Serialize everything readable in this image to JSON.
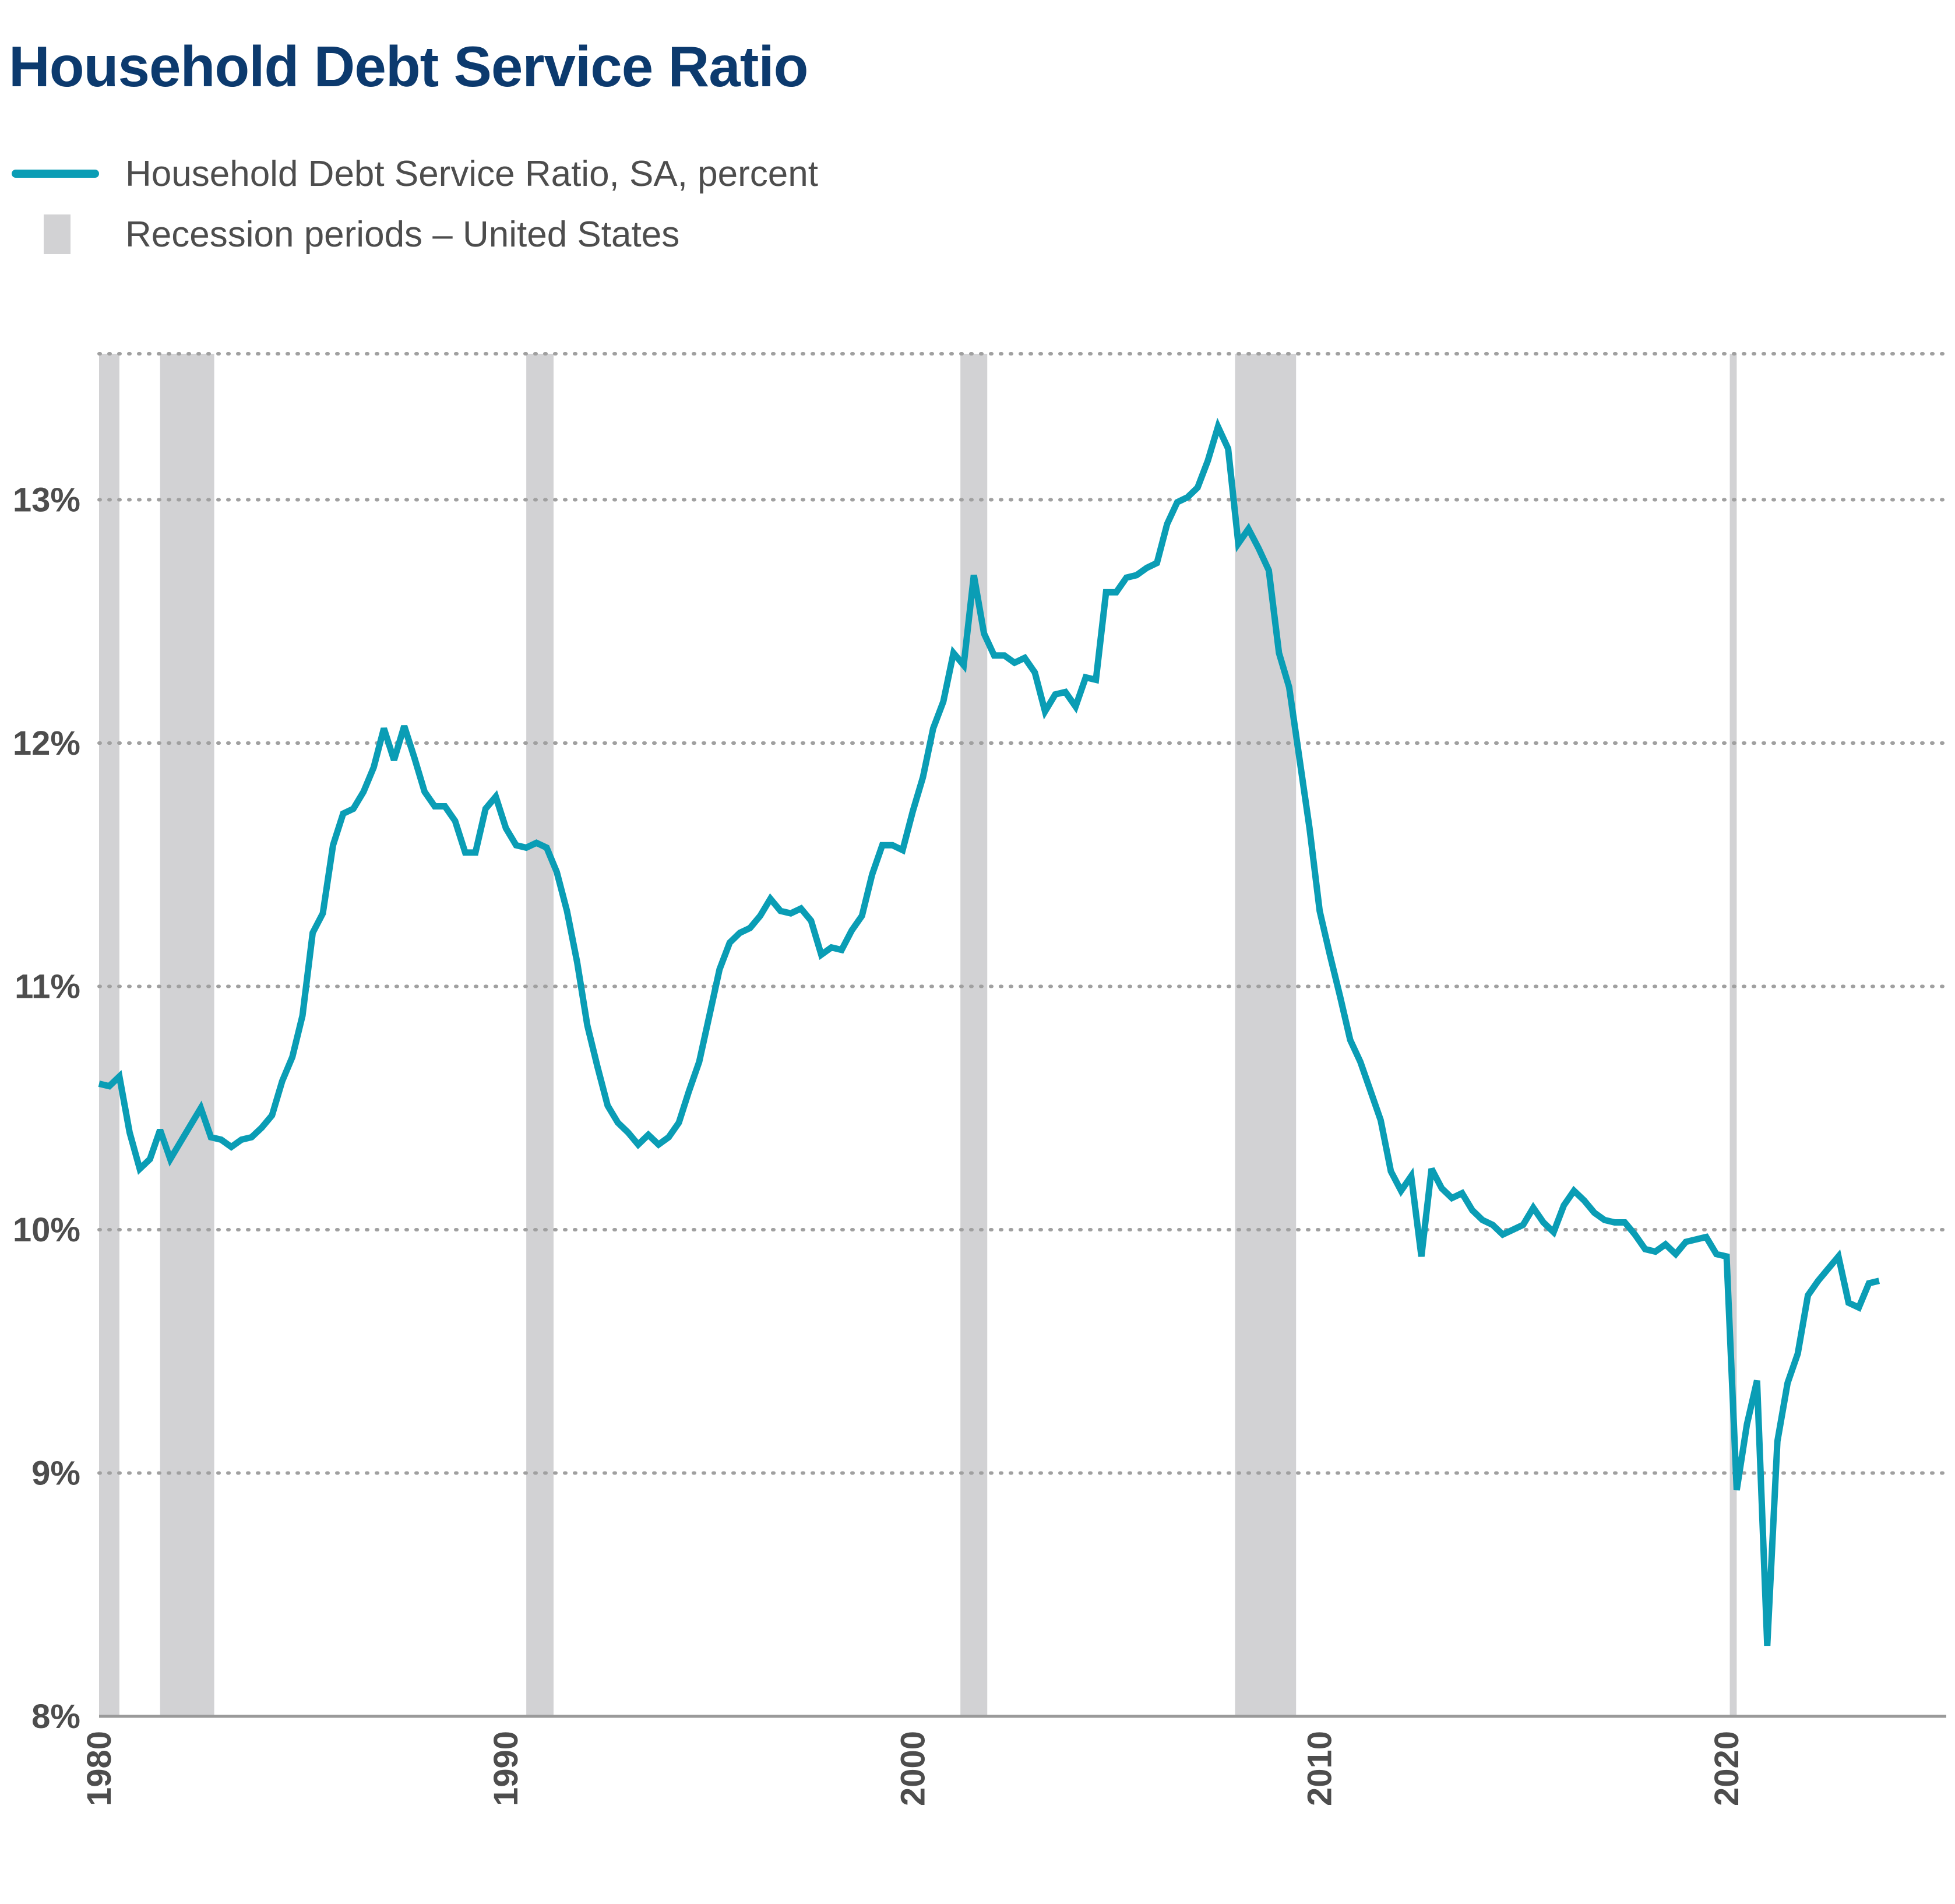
{
  "colors": {
    "title": "#0c3a6e",
    "series_line": "#0a9db5",
    "recession_band": "#d2d2d4",
    "gridline": "#a0a0a0",
    "axis": "#9a9a9a",
    "tick_text": "#4d4d4d"
  },
  "chart_data": {
    "type": "line",
    "title": "Household Debt Service Ratio",
    "xlabel": "",
    "ylabel": "",
    "y_unit": "%",
    "xlim": [
      1980,
      2025.4
    ],
    "ylim": [
      8,
      13.6
    ],
    "x_ticks": [
      1980,
      1990,
      2000,
      2010,
      2020
    ],
    "y_ticks": [
      8,
      9,
      10,
      11,
      12,
      13
    ],
    "grid": "horizontal dotted",
    "legend_position": "top-left",
    "legend": [
      {
        "label": "Household Debt Service Ratio, SA, percent",
        "kind": "line"
      },
      {
        "label": "Recession periods – United States",
        "kind": "band"
      }
    ],
    "recessions": [
      [
        1980.0,
        1980.5
      ],
      [
        1981.5,
        1982.83
      ],
      [
        1990.5,
        1991.17
      ],
      [
        2001.17,
        2001.83
      ],
      [
        2007.92,
        2009.42
      ],
      [
        2020.08,
        2020.25
      ]
    ],
    "series": [
      {
        "name": "Household Debt Service Ratio, SA, percent",
        "points": [
          [
            1980.0,
            10.6
          ],
          [
            1980.25,
            10.59
          ],
          [
            1980.5,
            10.63
          ],
          [
            1980.75,
            10.4
          ],
          [
            1981.0,
            10.25
          ],
          [
            1981.25,
            10.29
          ],
          [
            1981.5,
            10.41
          ],
          [
            1981.75,
            10.29
          ],
          [
            1982.0,
            10.36
          ],
          [
            1982.25,
            10.43
          ],
          [
            1982.5,
            10.5
          ],
          [
            1982.75,
            10.38
          ],
          [
            1983.0,
            10.37
          ],
          [
            1983.25,
            10.34
          ],
          [
            1983.5,
            10.37
          ],
          [
            1983.75,
            10.38
          ],
          [
            1984.0,
            10.42
          ],
          [
            1984.25,
            10.47
          ],
          [
            1984.5,
            10.61
          ],
          [
            1984.75,
            10.71
          ],
          [
            1985.0,
            10.88
          ],
          [
            1985.25,
            11.22
          ],
          [
            1985.5,
            11.3
          ],
          [
            1985.75,
            11.58
          ],
          [
            1986.0,
            11.71
          ],
          [
            1986.25,
            11.73
          ],
          [
            1986.5,
            11.8
          ],
          [
            1986.75,
            11.9
          ],
          [
            1987.0,
            12.06
          ],
          [
            1987.25,
            11.93
          ],
          [
            1987.5,
            12.07
          ],
          [
            1987.75,
            11.94
          ],
          [
            1988.0,
            11.8
          ],
          [
            1988.25,
            11.74
          ],
          [
            1988.5,
            11.74
          ],
          [
            1988.75,
            11.68
          ],
          [
            1989.0,
            11.55
          ],
          [
            1989.25,
            11.55
          ],
          [
            1989.5,
            11.73
          ],
          [
            1989.75,
            11.78
          ],
          [
            1990.0,
            11.65
          ],
          [
            1990.25,
            11.58
          ],
          [
            1990.5,
            11.57
          ],
          [
            1990.75,
            11.59
          ],
          [
            1991.0,
            11.57
          ],
          [
            1991.25,
            11.47
          ],
          [
            1991.5,
            11.31
          ],
          [
            1991.75,
            11.1
          ],
          [
            1992.0,
            10.84
          ],
          [
            1992.25,
            10.67
          ],
          [
            1992.5,
            10.51
          ],
          [
            1992.75,
            10.44
          ],
          [
            1993.0,
            10.4
          ],
          [
            1993.25,
            10.35
          ],
          [
            1993.5,
            10.39
          ],
          [
            1993.75,
            10.35
          ],
          [
            1994.0,
            10.38
          ],
          [
            1994.25,
            10.44
          ],
          [
            1994.5,
            10.57
          ],
          [
            1994.75,
            10.69
          ],
          [
            1995.0,
            10.88
          ],
          [
            1995.25,
            11.07
          ],
          [
            1995.5,
            11.18
          ],
          [
            1995.75,
            11.22
          ],
          [
            1996.0,
            11.24
          ],
          [
            1996.25,
            11.29
          ],
          [
            1996.5,
            11.36
          ],
          [
            1996.75,
            11.31
          ],
          [
            1997.0,
            11.3
          ],
          [
            1997.25,
            11.32
          ],
          [
            1997.5,
            11.27
          ],
          [
            1997.75,
            11.13
          ],
          [
            1998.0,
            11.16
          ],
          [
            1998.25,
            11.15
          ],
          [
            1998.5,
            11.23
          ],
          [
            1998.75,
            11.29
          ],
          [
            1999.0,
            11.46
          ],
          [
            1999.25,
            11.58
          ],
          [
            1999.5,
            11.58
          ],
          [
            1999.75,
            11.56
          ],
          [
            2000.0,
            11.72
          ],
          [
            2000.25,
            11.86
          ],
          [
            2000.5,
            12.06
          ],
          [
            2000.75,
            12.17
          ],
          [
            2001.0,
            12.37
          ],
          [
            2001.25,
            12.32
          ],
          [
            2001.5,
            12.69
          ],
          [
            2001.75,
            12.45
          ],
          [
            2002.0,
            12.36
          ],
          [
            2002.25,
            12.36
          ],
          [
            2002.5,
            12.33
          ],
          [
            2002.75,
            12.35
          ],
          [
            2003.0,
            12.29
          ],
          [
            2003.25,
            12.13
          ],
          [
            2003.5,
            12.2
          ],
          [
            2003.75,
            12.21
          ],
          [
            2004.0,
            12.15
          ],
          [
            2004.25,
            12.27
          ],
          [
            2004.5,
            12.26
          ],
          [
            2004.75,
            12.62
          ],
          [
            2005.0,
            12.62
          ],
          [
            2005.25,
            12.68
          ],
          [
            2005.5,
            12.69
          ],
          [
            2005.75,
            12.72
          ],
          [
            2006.0,
            12.74
          ],
          [
            2006.25,
            12.9
          ],
          [
            2006.5,
            12.99
          ],
          [
            2006.75,
            13.01
          ],
          [
            2007.0,
            13.05
          ],
          [
            2007.25,
            13.16
          ],
          [
            2007.5,
            13.3
          ],
          [
            2007.75,
            13.21
          ],
          [
            2008.0,
            12.82
          ],
          [
            2008.25,
            12.88
          ],
          [
            2008.5,
            12.8
          ],
          [
            2008.75,
            12.71
          ],
          [
            2009.0,
            12.37
          ],
          [
            2009.25,
            12.23
          ],
          [
            2009.5,
            11.94
          ],
          [
            2009.75,
            11.65
          ],
          [
            2010.0,
            11.31
          ],
          [
            2010.25,
            11.13
          ],
          [
            2010.5,
            10.96
          ],
          [
            2010.75,
            10.78
          ],
          [
            2011.0,
            10.69
          ],
          [
            2011.25,
            10.57
          ],
          [
            2011.5,
            10.45
          ],
          [
            2011.75,
            10.24
          ],
          [
            2012.0,
            10.16
          ],
          [
            2012.25,
            10.22
          ],
          [
            2012.5,
            9.89
          ],
          [
            2012.75,
            10.25
          ],
          [
            2013.0,
            10.17
          ],
          [
            2013.25,
            10.13
          ],
          [
            2013.5,
            10.15
          ],
          [
            2013.75,
            10.08
          ],
          [
            2014.0,
            10.04
          ],
          [
            2014.25,
            10.02
          ],
          [
            2014.5,
            9.98
          ],
          [
            2014.75,
            10.0
          ],
          [
            2015.0,
            10.02
          ],
          [
            2015.25,
            10.09
          ],
          [
            2015.5,
            10.03
          ],
          [
            2015.75,
            9.99
          ],
          [
            2016.0,
            10.1
          ],
          [
            2016.25,
            10.16
          ],
          [
            2016.5,
            10.12
          ],
          [
            2016.75,
            10.07
          ],
          [
            2017.0,
            10.04
          ],
          [
            2017.25,
            10.03
          ],
          [
            2017.5,
            10.03
          ],
          [
            2017.75,
            9.98
          ],
          [
            2018.0,
            9.92
          ],
          [
            2018.25,
            9.91
          ],
          [
            2018.5,
            9.94
          ],
          [
            2018.75,
            9.9
          ],
          [
            2019.0,
            9.95
          ],
          [
            2019.25,
            9.96
          ],
          [
            2019.5,
            9.97
          ],
          [
            2019.75,
            9.9
          ],
          [
            2020.0,
            9.89
          ],
          [
            2020.25,
            8.93
          ],
          [
            2020.5,
            9.2
          ],
          [
            2020.75,
            9.38
          ],
          [
            2021.0,
            8.29
          ],
          [
            2021.25,
            9.13
          ],
          [
            2021.5,
            9.37
          ],
          [
            2021.75,
            9.49
          ],
          [
            2022.0,
            9.73
          ],
          [
            2022.25,
            9.79
          ],
          [
            2022.5,
            9.84
          ],
          [
            2022.75,
            9.89
          ],
          [
            2023.0,
            9.7
          ],
          [
            2023.25,
            9.68
          ],
          [
            2023.5,
            9.78
          ],
          [
            2023.75,
            9.79
          ]
        ]
      }
    ]
  }
}
